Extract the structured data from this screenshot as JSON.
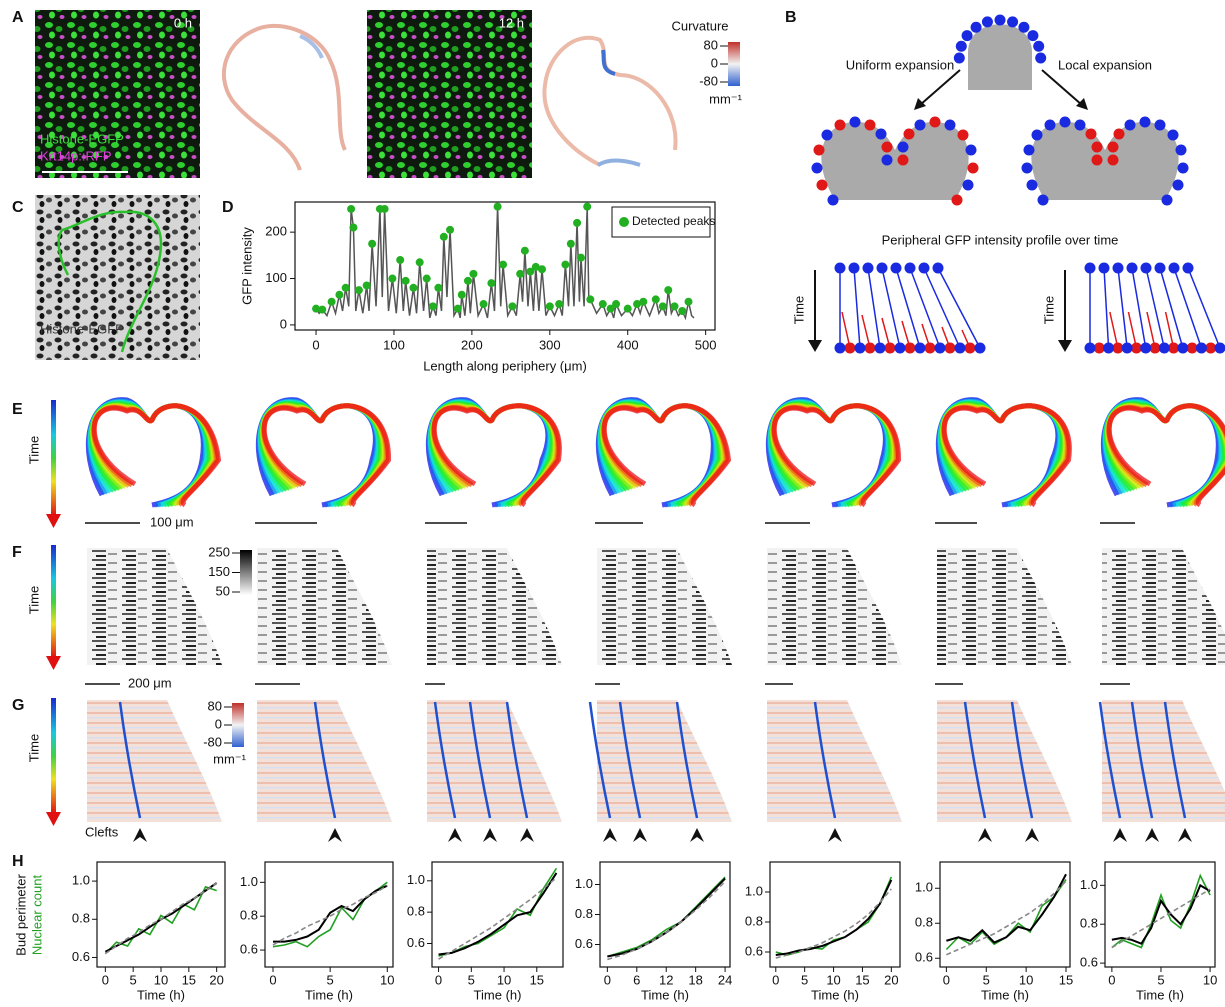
{
  "panels": {
    "A": {
      "label": "A",
      "time_labels": [
        "0 h",
        "12 h"
      ],
      "markers": [
        "Histone-EGFP",
        "Krt14p::RFP"
      ],
      "colorbar": {
        "title": "Curvature",
        "ticks": [
          80,
          0,
          -80
        ],
        "unit": "mm⁻¹"
      }
    },
    "B": {
      "label": "B",
      "left": "Uniform expansion",
      "right": "Local expansion",
      "profile_title": "Peripheral GFP intensity profile over time",
      "time_left": "Time",
      "time_right": "Time"
    },
    "C": {
      "label": "C",
      "marker": "Histone-EGFP"
    },
    "D": {
      "label": "D",
      "chart_data": {
        "type": "line",
        "xlabel": "Length along periphery (μm)",
        "ylabel": "GFP intensity",
        "xlim": [
          -27,
          512
        ],
        "xticks": [
          0,
          100,
          200,
          300,
          400,
          500
        ],
        "ylim": [
          -11,
          265
        ],
        "yticks": [
          0,
          100,
          200
        ],
        "profile": {
          "color": "#555555",
          "x": [
            0,
            4,
            8,
            14,
            20,
            25,
            30,
            34,
            38,
            42,
            45,
            48,
            51,
            55,
            60,
            65,
            68,
            72,
            77,
            82,
            85,
            88,
            93,
            98,
            103,
            108,
            112,
            115,
            120,
            125,
            129,
            133,
            138,
            142,
            146,
            150,
            154,
            157,
            161,
            164,
            168,
            172,
            177,
            182,
            185,
            187,
            191,
            195,
            198,
            202,
            208,
            215,
            220,
            225,
            229,
            233,
            237,
            240,
            246,
            252,
            257,
            262,
            265,
            268,
            272,
            275,
            279,
            282,
            286,
            290,
            295,
            300,
            306,
            312,
            316,
            320,
            324,
            327,
            331,
            335,
            338,
            340,
            344,
            348,
            350,
            352,
            360,
            368,
            373,
            378,
            382,
            385,
            392,
            400,
            406,
            412,
            416,
            420,
            428,
            436,
            440,
            445,
            449,
            452,
            456,
            460,
            465,
            470,
            474,
            478,
            482,
            485
          ],
          "y": [
            35,
            25,
            33,
            20,
            50,
            25,
            65,
            30,
            80,
            40,
            250,
            210,
            30,
            75,
            25,
            85,
            30,
            175,
            40,
            250,
            60,
            250,
            30,
            100,
            25,
            140,
            30,
            95,
            20,
            80,
            25,
            135,
            30,
            100,
            15,
            40,
            20,
            80,
            30,
            190,
            60,
            205,
            20,
            35,
            15,
            65,
            20,
            95,
            25,
            110,
            20,
            45,
            15,
            90,
            30,
            255,
            40,
            130,
            20,
            40,
            20,
            110,
            50,
            160,
            40,
            115,
            30,
            125,
            30,
            120,
            20,
            40,
            20,
            45,
            20,
            130,
            40,
            175,
            40,
            220,
            50,
            145,
            40,
            255,
            60,
            55,
            25,
            45,
            20,
            35,
            15,
            45,
            20,
            35,
            20,
            45,
            25,
            50,
            20,
            55,
            25,
            40,
            20,
            75,
            25,
            40,
            20,
            30,
            15,
            50,
            20,
            15
          ]
        },
        "peaks": {
          "name": "Detected peaks",
          "color": "#22b022",
          "x": [
            0,
            8,
            20,
            30,
            38,
            45,
            48,
            55,
            65,
            72,
            82,
            88,
            98,
            108,
            115,
            125,
            133,
            142,
            150,
            157,
            164,
            172,
            182,
            187,
            195,
            202,
            215,
            225,
            233,
            240,
            252,
            262,
            268,
            275,
            282,
            290,
            300,
            312,
            320,
            327,
            335,
            340,
            348,
            352,
            368,
            378,
            385,
            400,
            412,
            420,
            436,
            445,
            452,
            460,
            470,
            478
          ],
          "y": [
            35,
            33,
            50,
            65,
            80,
            250,
            210,
            75,
            85,
            175,
            250,
            250,
            100,
            140,
            95,
            80,
            135,
            100,
            40,
            80,
            190,
            205,
            35,
            65,
            95,
            110,
            45,
            90,
            255,
            130,
            40,
            110,
            160,
            115,
            125,
            120,
            40,
            45,
            130,
            175,
            220,
            145,
            255,
            55,
            45,
            35,
            45,
            35,
            45,
            50,
            55,
            40,
            75,
            40,
            30,
            50
          ]
        }
      }
    },
    "E": {
      "label": "E",
      "time": "Time",
      "scale": "100 μm"
    },
    "F": {
      "label": "F",
      "time": "Time",
      "scale": "200 μm",
      "colorbar": {
        "ticks": [
          250,
          150,
          50
        ]
      }
    },
    "G": {
      "label": "G",
      "time": "Time",
      "clefts": "Clefts",
      "colorbar": {
        "ticks": [
          80,
          0,
          -80
        ],
        "unit": "mm⁻¹"
      }
    },
    "H": {
      "label": "H",
      "ylabel_black": "Bud perimeter",
      "ylabel_green": "Nuclear count",
      "charts": [
        {
          "type": "line",
          "xlabel": "Time (h)",
          "xlim": [
            -1.5,
            21.5
          ],
          "xticks": [
            0,
            5,
            10,
            15,
            20
          ],
          "ylim": [
            0.55,
            1.1
          ],
          "yticks": [
            0.6,
            0.8,
            {
              "value": 1,
              "label": "1.0"
            }
          ],
          "x": [
            0,
            2,
            4,
            6,
            8,
            10,
            12,
            14,
            16,
            18,
            20
          ],
          "series": [
            {
              "color": "#22a022",
              "values": [
                0.62,
                0.68,
                0.66,
                0.75,
                0.72,
                0.82,
                0.78,
                0.88,
                0.85,
                0.97,
                0.95
              ]
            },
            {
              "color": "#000000",
              "values": [
                0.63,
                0.66,
                0.69,
                0.72,
                0.76,
                0.8,
                0.83,
                0.87,
                0.91,
                0.95,
                0.99
              ]
            },
            {
              "color": "#888888",
              "dashed": true,
              "values": [
                0.62,
                0.66,
                0.7,
                0.73,
                0.77,
                0.8,
                0.84,
                0.88,
                0.91,
                0.95,
                0.99
              ]
            }
          ]
        },
        {
          "type": "line",
          "xlabel": "Time (h)",
          "xlim": [
            -0.7,
            10.5
          ],
          "xticks": [
            0,
            5,
            10
          ],
          "ylim": [
            0.5,
            1.12
          ],
          "yticks": [
            0.6,
            0.8,
            {
              "value": 1,
              "label": "1.0"
            }
          ],
          "x": [
            0,
            1,
            2,
            3,
            4,
            5,
            6,
            7,
            8,
            9,
            10
          ],
          "series": [
            {
              "color": "#22a022",
              "values": [
                0.62,
                0.63,
                0.65,
                0.62,
                0.68,
                0.72,
                0.85,
                0.78,
                0.9,
                0.95,
                1.0
              ]
            },
            {
              "color": "#000000",
              "values": [
                0.65,
                0.65,
                0.66,
                0.68,
                0.72,
                0.82,
                0.86,
                0.83,
                0.9,
                0.95,
                0.98
              ]
            },
            {
              "color": "#888888",
              "dashed": true,
              "values": [
                0.63,
                0.67,
                0.7,
                0.74,
                0.77,
                0.8,
                0.84,
                0.87,
                0.91,
                0.94,
                0.98
              ]
            }
          ]
        },
        {
          "type": "line",
          "xlabel": "Time (h)",
          "xlim": [
            -1,
            19
          ],
          "xticks": [
            0,
            5,
            10,
            15
          ],
          "ylim": [
            0.45,
            1.12
          ],
          "yticks": [
            0.6,
            0.8,
            {
              "value": 1,
              "label": "1.0"
            }
          ],
          "x": [
            0,
            2,
            4,
            6,
            8,
            10,
            12,
            14,
            16,
            18
          ],
          "series": [
            {
              "color": "#22a022",
              "values": [
                0.52,
                0.54,
                0.58,
                0.6,
                0.65,
                0.7,
                0.82,
                0.78,
                0.95,
                1.08
              ]
            },
            {
              "color": "#000000",
              "values": [
                0.53,
                0.54,
                0.57,
                0.61,
                0.66,
                0.72,
                0.78,
                0.8,
                0.92,
                1.05
              ]
            },
            {
              "color": "#888888",
              "dashed": true,
              "values": [
                0.5,
                0.55,
                0.6,
                0.65,
                0.7,
                0.76,
                0.82,
                0.88,
                0.95,
                1.02
              ]
            }
          ]
        },
        {
          "type": "line",
          "xlabel": "Time (h)",
          "xlim": [
            -1.5,
            25
          ],
          "xticks": [
            0,
            6,
            12,
            18,
            24
          ],
          "ylim": [
            0.45,
            1.15
          ],
          "yticks": [
            0.6,
            0.8,
            {
              "value": 1,
              "label": "1.0"
            }
          ],
          "x": [
            0,
            3,
            6,
            9,
            12,
            15,
            18,
            21,
            24
          ],
          "series": [
            {
              "color": "#22a022",
              "values": [
                0.52,
                0.55,
                0.58,
                0.63,
                0.7,
                0.75,
                0.85,
                0.95,
                1.05
              ]
            },
            {
              "color": "#000000",
              "values": [
                0.52,
                0.54,
                0.57,
                0.62,
                0.68,
                0.75,
                0.84,
                0.94,
                1.04
              ]
            },
            {
              "color": "#888888",
              "dashed": true,
              "values": [
                0.5,
                0.53,
                0.57,
                0.62,
                0.68,
                0.75,
                0.83,
                0.92,
                1.02
              ]
            }
          ]
        },
        {
          "type": "line",
          "xlabel": "Time (h)",
          "xlim": [
            -1,
            21.5
          ],
          "xticks": [
            0,
            5,
            10,
            15,
            20
          ],
          "ylim": [
            0.5,
            1.2
          ],
          "yticks": [
            0.6,
            0.8,
            {
              "value": 1,
              "label": "1.0"
            }
          ],
          "x": [
            0,
            2,
            4,
            6,
            8,
            10,
            12,
            14,
            16,
            18,
            20
          ],
          "series": [
            {
              "color": "#22a022",
              "values": [
                0.6,
                0.58,
                0.6,
                0.63,
                0.62,
                0.68,
                0.7,
                0.75,
                0.8,
                0.92,
                1.1
              ]
            },
            {
              "color": "#000000",
              "values": [
                0.58,
                0.59,
                0.61,
                0.62,
                0.64,
                0.67,
                0.7,
                0.75,
                0.82,
                0.92,
                1.08
              ]
            },
            {
              "color": "#888888",
              "dashed": true,
              "values": [
                0.56,
                0.58,
                0.6,
                0.63,
                0.66,
                0.7,
                0.74,
                0.79,
                0.85,
                0.93,
                1.02
              ]
            }
          ]
        },
        {
          "type": "line",
          "xlabel": "Time (h)",
          "xlim": [
            -0.8,
            15.5
          ],
          "xticks": [
            0,
            5,
            10,
            15
          ],
          "ylim": [
            0.55,
            1.15
          ],
          "yticks": [
            0.6,
            0.8,
            {
              "value": 1,
              "label": "1.0"
            }
          ],
          "x": [
            0,
            1.5,
            3,
            4.5,
            6,
            7.5,
            9,
            10.5,
            12,
            13.5,
            15
          ],
          "series": [
            {
              "color": "#22a022",
              "values": [
                0.65,
                0.72,
                0.68,
                0.75,
                0.68,
                0.72,
                0.8,
                0.75,
                0.9,
                0.95,
                1.05
              ]
            },
            {
              "color": "#000000",
              "values": [
                0.7,
                0.72,
                0.7,
                0.76,
                0.69,
                0.72,
                0.78,
                0.76,
                0.85,
                0.95,
                1.08
              ]
            },
            {
              "color": "#888888",
              "dashed": true,
              "values": [
                0.62,
                0.65,
                0.68,
                0.71,
                0.74,
                0.78,
                0.82,
                0.86,
                0.91,
                0.97,
                1.04
              ]
            }
          ]
        },
        {
          "type": "line",
          "xlabel": "Time (h)",
          "xlim": [
            -0.7,
            10.5
          ],
          "xticks": [
            0,
            5,
            10
          ],
          "ylim": [
            0.58,
            1.12
          ],
          "yticks": [
            0.6,
            0.8,
            {
              "value": 1,
              "label": "1.0"
            }
          ],
          "x": [
            0,
            1,
            2,
            3,
            4,
            5,
            6,
            7,
            8,
            9,
            10
          ],
          "series": [
            {
              "color": "#22a022",
              "values": [
                0.68,
                0.72,
                0.7,
                0.68,
                0.8,
                0.95,
                0.82,
                0.78,
                0.9,
                1.05,
                0.95
              ]
            },
            {
              "color": "#000000",
              "values": [
                0.72,
                0.73,
                0.72,
                0.7,
                0.78,
                0.92,
                0.85,
                0.8,
                0.88,
                1.0,
                0.97
              ]
            },
            {
              "color": "#888888",
              "dashed": true,
              "values": [
                0.68,
                0.71,
                0.74,
                0.77,
                0.8,
                0.83,
                0.86,
                0.89,
                0.92,
                0.95,
                0.98
              ]
            }
          ]
        }
      ]
    }
  }
}
